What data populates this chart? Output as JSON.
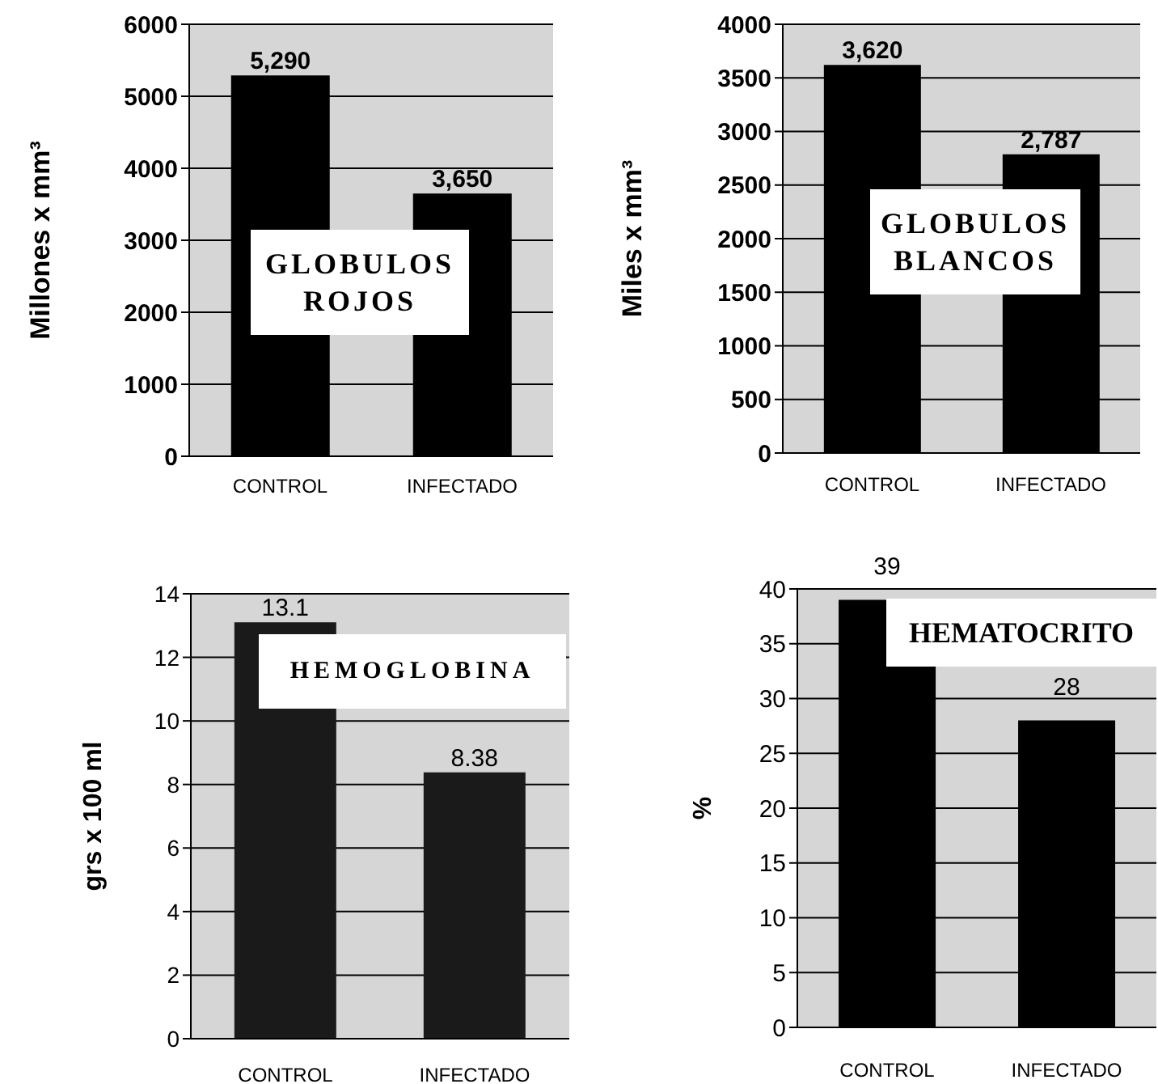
{
  "chart_data": [
    {
      "type": "bar",
      "title": "GLOBULOS ROJOS",
      "ylabel": "Millones x mm³",
      "categories": [
        "CONTROL",
        "INFECTADO"
      ],
      "values": [
        5290,
        3650
      ],
      "value_labels": [
        "5,290",
        "3,650"
      ],
      "color": "#000000",
      "ylim": [
        0,
        6000
      ],
      "yticks": [
        0,
        1000,
        2000,
        3000,
        4000,
        5000,
        6000
      ],
      "grid": "y"
    },
    {
      "type": "bar",
      "title": "GLOBULOS BLANCOS",
      "ylabel": "Miles x mm³",
      "categories": [
        "CONTROL",
        "INFECTADO"
      ],
      "values": [
        3620,
        2787
      ],
      "value_labels": [
        "3,620",
        "2,787"
      ],
      "color": "#000000",
      "ylim": [
        0,
        4000
      ],
      "yticks": [
        0,
        500,
        1000,
        1500,
        2000,
        2500,
        3000,
        3500,
        4000
      ],
      "grid": "y"
    },
    {
      "type": "bar",
      "title": "HEMOGLOBINA",
      "ylabel": "grs x 100 ml",
      "categories": [
        "CONTROL",
        "INFECTADO"
      ],
      "values": [
        13.1,
        8.38
      ],
      "data_labels": true,
      "color": "#1a1a1a",
      "ylim": [
        0,
        14
      ],
      "yticks": [
        0,
        2,
        4,
        6,
        8,
        10,
        12,
        14
      ],
      "grid": "y"
    },
    {
      "type": "bar",
      "title": "HEMATOCRITO",
      "ylabel": "%",
      "categories": [
        "CONTROL",
        "INFECTADO"
      ],
      "values": [
        39,
        28
      ],
      "data_labels": true,
      "color": "#000000",
      "ylim": [
        0,
        40
      ],
      "yticks": [
        0,
        5,
        10,
        15,
        20,
        25,
        30,
        35,
        40
      ],
      "grid": "y"
    }
  ]
}
